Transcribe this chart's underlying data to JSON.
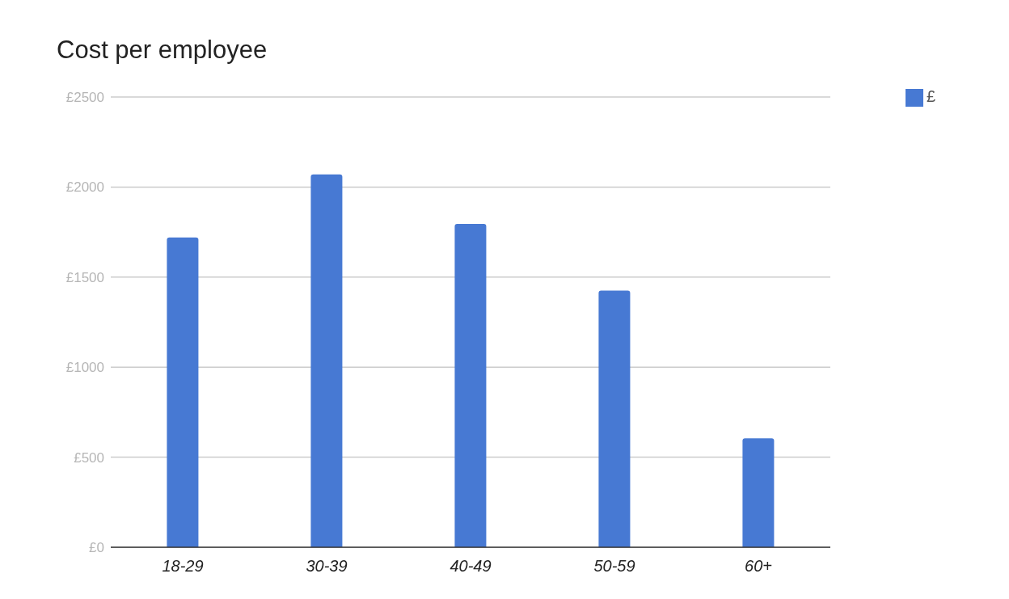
{
  "chart_data": {
    "type": "bar",
    "title": "Cost per employee",
    "categories": [
      "18-29",
      "30-39",
      "40-49",
      "50-59",
      "60+"
    ],
    "series": [
      {
        "name": "£",
        "color": "#4779d3",
        "values": [
          1720,
          2070,
          1795,
          1425,
          605
        ]
      }
    ],
    "ylim": [
      0,
      2500
    ],
    "yticks": [
      {
        "value": 0,
        "label": "£0"
      },
      {
        "value": 500,
        "label": "£500"
      },
      {
        "value": 1000,
        "label": "£1000"
      },
      {
        "value": 1500,
        "label": "£1500"
      },
      {
        "value": 2000,
        "label": "£2000"
      },
      {
        "value": 2500,
        "label": "£2500"
      }
    ],
    "grid": "y",
    "legend": "top right"
  }
}
